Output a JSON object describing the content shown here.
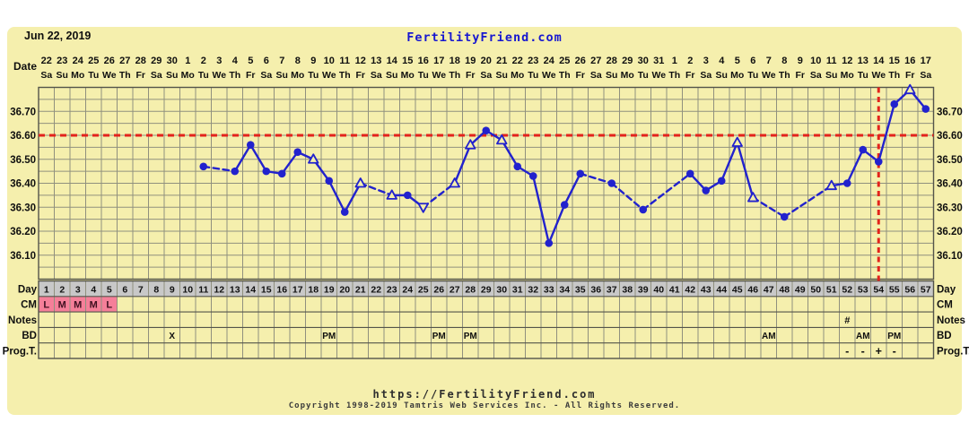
{
  "header": {
    "chart_start_date": "Jun 22, 2019",
    "site_title": "FertilityFriend.com",
    "date_row_label": "Date"
  },
  "colors": {
    "panel_bg": "#f5efad",
    "grid": "#90907e",
    "border_dark": "#54544a",
    "line_blue": "#2222cd",
    "accent_red": "#e3231c",
    "day_row_bg": "#c8c8c8",
    "cm_highlight": "#f57f99",
    "cm_text": "#3f1020",
    "text_black": "#0f0f0f",
    "title_blue": "#1717d0"
  },
  "chart_data": {
    "type": "line",
    "title": "FertilityFriend.com",
    "start_date_label": "Jun 22, 2019",
    "ylim": [
      36.0,
      36.8
    ],
    "y_minor_step": 0.05,
    "y_tick_labels": [
      "36.70",
      "36.60",
      "36.50",
      "36.40",
      "36.30",
      "36.20",
      "36.10"
    ],
    "y_tick_values": [
      36.7,
      36.6,
      36.5,
      36.4,
      36.3,
      36.2,
      36.1
    ],
    "coverline_temp": 36.6,
    "ovulation_day": 54,
    "days_count": 57,
    "grid": "on",
    "x_dates": [
      "22",
      "23",
      "24",
      "25",
      "26",
      "27",
      "28",
      "29",
      "30",
      "1",
      "2",
      "3",
      "4",
      "5",
      "6",
      "7",
      "8",
      "9",
      "10",
      "11",
      "12",
      "13",
      "14",
      "15",
      "16",
      "17",
      "18",
      "19",
      "20",
      "21",
      "22",
      "23",
      "24",
      "25",
      "26",
      "27",
      "28",
      "29",
      "30",
      "31",
      "1",
      "2",
      "3",
      "4",
      "5",
      "6",
      "7",
      "8",
      "9",
      "10",
      "11",
      "12",
      "13",
      "14",
      "15",
      "16",
      "17"
    ],
    "x_weekdays": [
      "Sa",
      "Su",
      "Mo",
      "Tu",
      "We",
      "Th",
      "Fr",
      "Sa",
      "Su",
      "Mo",
      "Tu",
      "We",
      "Th",
      "Fr",
      "Sa",
      "Su",
      "Mo",
      "Tu",
      "We",
      "Th",
      "Fr",
      "Sa",
      "Su",
      "Mo",
      "Tu",
      "We",
      "Th",
      "Fr",
      "Sa",
      "Su",
      "Mo",
      "Tu",
      "We",
      "Th",
      "Fr",
      "Sa",
      "Su",
      "Mo",
      "Tu",
      "We",
      "Th",
      "Fr",
      "Sa",
      "Su",
      "Mo",
      "Tu",
      "We",
      "Th",
      "Fr",
      "Sa",
      "Su",
      "Mo",
      "Tu",
      "We",
      "Th",
      "Fr",
      "Sa"
    ],
    "points": [
      {
        "day": 11,
        "temp": 36.47,
        "marker": "circle"
      },
      {
        "day": 13,
        "temp": 36.45,
        "marker": "circle"
      },
      {
        "day": 14,
        "temp": 36.56,
        "marker": "circle"
      },
      {
        "day": 15,
        "temp": 36.45,
        "marker": "circle"
      },
      {
        "day": 16,
        "temp": 36.44,
        "marker": "circle"
      },
      {
        "day": 17,
        "temp": 36.53,
        "marker": "circle"
      },
      {
        "day": 18,
        "temp": 36.5,
        "marker": "triangle-up"
      },
      {
        "day": 19,
        "temp": 36.41,
        "marker": "circle"
      },
      {
        "day": 20,
        "temp": 36.28,
        "marker": "circle"
      },
      {
        "day": 21,
        "temp": 36.4,
        "marker": "triangle-up"
      },
      {
        "day": 23,
        "temp": 36.35,
        "marker": "triangle-up"
      },
      {
        "day": 24,
        "temp": 36.35,
        "marker": "circle"
      },
      {
        "day": 25,
        "temp": 36.3,
        "marker": "triangle-down"
      },
      {
        "day": 27,
        "temp": 36.4,
        "marker": "triangle-up"
      },
      {
        "day": 28,
        "temp": 36.56,
        "marker": "triangle-up"
      },
      {
        "day": 29,
        "temp": 36.62,
        "marker": "circle"
      },
      {
        "day": 30,
        "temp": 36.58,
        "marker": "triangle-up"
      },
      {
        "day": 31,
        "temp": 36.47,
        "marker": "circle"
      },
      {
        "day": 32,
        "temp": 36.43,
        "marker": "circle"
      },
      {
        "day": 33,
        "temp": 36.15,
        "marker": "circle"
      },
      {
        "day": 34,
        "temp": 36.31,
        "marker": "circle"
      },
      {
        "day": 35,
        "temp": 36.44,
        "marker": "circle"
      },
      {
        "day": 37,
        "temp": 36.4,
        "marker": "circle"
      },
      {
        "day": 39,
        "temp": 36.29,
        "marker": "circle"
      },
      {
        "day": 42,
        "temp": 36.44,
        "marker": "circle"
      },
      {
        "day": 43,
        "temp": 36.37,
        "marker": "circle"
      },
      {
        "day": 44,
        "temp": 36.41,
        "marker": "circle"
      },
      {
        "day": 45,
        "temp": 36.57,
        "marker": "triangle-up"
      },
      {
        "day": 46,
        "temp": 36.34,
        "marker": "triangle-up"
      },
      {
        "day": 48,
        "temp": 36.26,
        "marker": "circle"
      },
      {
        "day": 51,
        "temp": 36.39,
        "marker": "triangle-up"
      },
      {
        "day": 52,
        "temp": 36.4,
        "marker": "circle"
      },
      {
        "day": 53,
        "temp": 36.54,
        "marker": "circle"
      },
      {
        "day": 54,
        "temp": 36.49,
        "marker": "circle"
      },
      {
        "day": 55,
        "temp": 36.73,
        "marker": "circle"
      },
      {
        "day": 56,
        "temp": 36.79,
        "marker": "triangle-up"
      },
      {
        "day": 57,
        "temp": 36.71,
        "marker": "circle"
      }
    ]
  },
  "rows": {
    "day": {
      "label": "Day",
      "values": [
        "1",
        "2",
        "3",
        "4",
        "5",
        "6",
        "7",
        "8",
        "9",
        "10",
        "11",
        "12",
        "13",
        "14",
        "15",
        "16",
        "17",
        "18",
        "19",
        "20",
        "21",
        "22",
        "23",
        "24",
        "25",
        "26",
        "27",
        "28",
        "29",
        "30",
        "31",
        "32",
        "33",
        "34",
        "35",
        "36",
        "37",
        "38",
        "39",
        "40",
        "41",
        "42",
        "43",
        "44",
        "45",
        "46",
        "47",
        "48",
        "49",
        "50",
        "51",
        "52",
        "53",
        "54",
        "55",
        "56",
        "57"
      ]
    },
    "cm": {
      "label": "CM",
      "cells": [
        {
          "day": 1,
          "text": "L"
        },
        {
          "day": 2,
          "text": "M"
        },
        {
          "day": 3,
          "text": "M"
        },
        {
          "day": 4,
          "text": "M"
        },
        {
          "day": 5,
          "text": "L"
        }
      ],
      "highlight_days": [
        1,
        2,
        3,
        4,
        5
      ]
    },
    "notes": {
      "label": "Notes",
      "cells": [
        {
          "day": 52,
          "text": "#"
        }
      ]
    },
    "bd": {
      "label": "BD",
      "cells": [
        {
          "day": 9,
          "text": "X"
        },
        {
          "day": 19,
          "text": "PM"
        },
        {
          "day": 26,
          "text": "PM"
        },
        {
          "day": 28,
          "text": "PM"
        },
        {
          "day": 47,
          "text": "AM"
        },
        {
          "day": 53,
          "text": "AM"
        },
        {
          "day": 55,
          "text": "PM"
        }
      ]
    },
    "progt": {
      "label": "Prog.T.",
      "cells": [
        {
          "day": 52,
          "text": "-"
        },
        {
          "day": 53,
          "text": "-"
        },
        {
          "day": 54,
          "text": "+"
        },
        {
          "day": 55,
          "text": "-"
        }
      ]
    }
  },
  "footer": {
    "url": "https://FertilityFriend.com",
    "copyright": "Copyright 1998-2019 Tamtris Web Services Inc. - All Rights Reserved."
  }
}
